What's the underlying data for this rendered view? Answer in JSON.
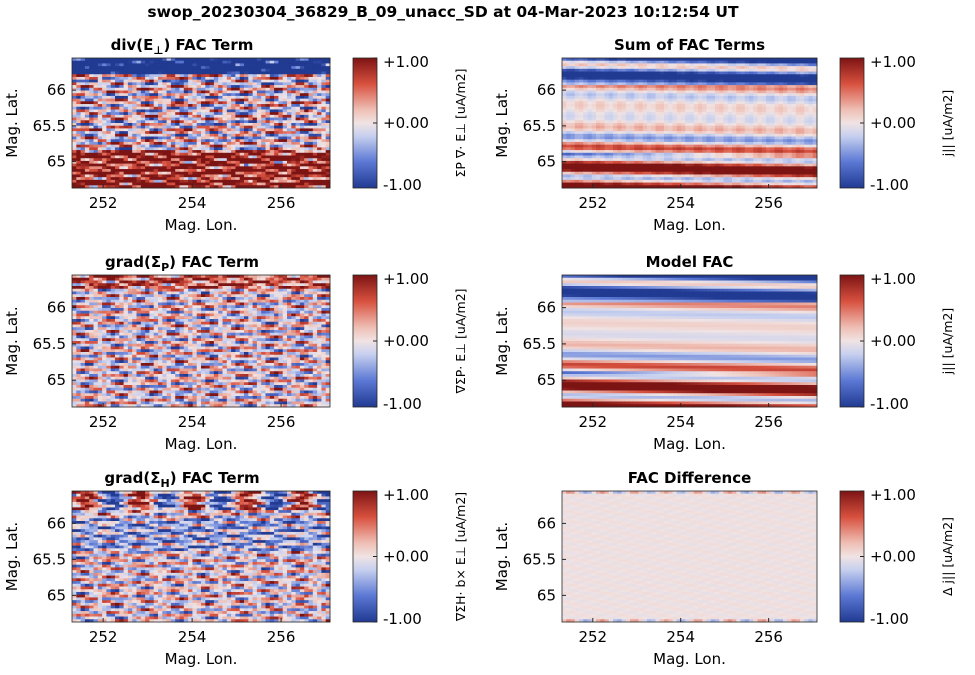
{
  "figure_title": "swop_20230304_36829_B_09_unacc_SD at 04-Mar-2023 10:12:54 UT",
  "colormap": {
    "low": "#2c3e96",
    "mid": "#f0e2e2",
    "high": "#8b1a1a"
  },
  "chart_data": [
    {
      "type": "heatmap",
      "title": "div(E⊥) FAC Term",
      "title_main": "div(E",
      "title_sub": "⊥",
      "title_tail": ") FAC Term",
      "xlabel": "Mag. Lon.",
      "ylabel": "Mag. Lat.",
      "xlim": [
        251.3,
        257.1
      ],
      "ylim": [
        64.63,
        66.45
      ],
      "xticks": [
        "252",
        "254",
        "256"
      ],
      "yticks": [
        "65",
        "65.5",
        "66"
      ],
      "colorbar": {
        "ticks": [
          "+1.00",
          "+0.00",
          "-1.00"
        ],
        "range": [
          -1,
          1
        ],
        "label": "ΣP ∇· E⊥ [uA/m2]"
      },
      "pattern": "noisy-bands-neg-top-pos-bottom"
    },
    {
      "type": "heatmap",
      "title": "Sum of FAC Terms",
      "title_main": "Sum of FAC Terms",
      "title_sub": "",
      "title_tail": "",
      "xlabel": "Mag. Lon.",
      "ylabel": "Mag. Lat.",
      "xlim": [
        251.3,
        257.1
      ],
      "ylim": [
        64.63,
        66.45
      ],
      "xticks": [
        "252",
        "254",
        "256"
      ],
      "yticks": [
        "65",
        "65.5",
        "66"
      ],
      "colorbar": {
        "ticks": [
          "+1.00",
          "+0.00",
          "-1.00"
        ],
        "range": [
          -1,
          1
        ],
        "label": "j|| [uA/m2]"
      },
      "pattern": "smooth-latitude-bands"
    },
    {
      "type": "heatmap",
      "title": "grad(ΣP) FAC Term",
      "title_main": "grad(Σ",
      "title_sub": "P",
      "title_tail": ") FAC Term",
      "xlabel": "Mag. Lon.",
      "ylabel": "Mag. Lat.",
      "xlim": [
        251.3,
        257.1
      ],
      "ylim": [
        64.63,
        66.45
      ],
      "xticks": [
        "252",
        "254",
        "256"
      ],
      "yticks": [
        "65",
        "65.5",
        "66"
      ],
      "colorbar": {
        "ticks": [
          "+1.00",
          "+0.00",
          "-1.00"
        ],
        "range": [
          -1,
          1
        ],
        "label": "∇ΣP· E⊥ [uA/m2]"
      },
      "pattern": "noisy-mixed"
    },
    {
      "type": "heatmap",
      "title": "Model FAC",
      "title_main": "Model FAC",
      "title_sub": "",
      "title_tail": "",
      "xlabel": "Mag. Lon.",
      "ylabel": "Mag. Lat.",
      "xlim": [
        251.3,
        257.1
      ],
      "ylim": [
        64.63,
        66.45
      ],
      "xticks": [
        "252",
        "254",
        "256"
      ],
      "yticks": [
        "65",
        "65.5",
        "66"
      ],
      "colorbar": {
        "ticks": [
          "+1.00",
          "+0.00",
          "-1.00"
        ],
        "range": [
          -1,
          1
        ],
        "label": "j|| [uA/m2]"
      },
      "pattern": "smooth-latitude-bands-clean"
    },
    {
      "type": "heatmap",
      "title": "grad(ΣH) FAC Term",
      "title_main": "grad(Σ",
      "title_sub": "H",
      "title_tail": ") FAC Term",
      "xlabel": "Mag. Lon.",
      "ylabel": "Mag. Lat.",
      "xlim": [
        251.3,
        257.1
      ],
      "ylim": [
        64.63,
        66.45
      ],
      "xticks": [
        "252",
        "254",
        "256"
      ],
      "yticks": [
        "65",
        "65.5",
        "66"
      ],
      "colorbar": {
        "ticks": [
          "+1.00",
          "+0.00",
          "-1.00"
        ],
        "range": [
          -1,
          1
        ],
        "label": "∇ΣH· b× E⊥ [uA/m2]"
      },
      "pattern": "noisy-mixed-strong-top"
    },
    {
      "type": "heatmap",
      "title": "FAC Difference",
      "title_main": "FAC Difference",
      "title_sub": "",
      "title_tail": "",
      "xlabel": "Mag. Lon.",
      "ylabel": "Mag. Lat.",
      "xlim": [
        251.3,
        257.1
      ],
      "ylim": [
        64.63,
        66.45
      ],
      "xticks": [
        "252",
        "254",
        "256"
      ],
      "yticks": [
        "65",
        "65.5",
        "66"
      ],
      "colorbar": {
        "ticks": [
          "+1.00",
          "+0.00",
          "-1.00"
        ],
        "range": [
          -1,
          1
        ],
        "label": "Δ j|| [uA/m2]"
      },
      "pattern": "near-zero"
    }
  ]
}
